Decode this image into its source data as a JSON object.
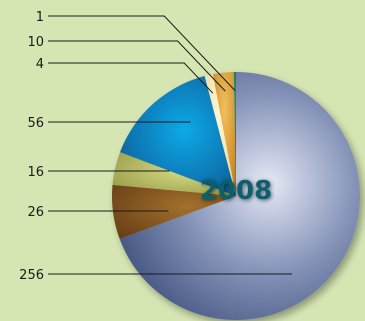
{
  "chart_data": {
    "type": "pie",
    "title": "2008",
    "slices": [
      {
        "value": 256,
        "label": "256",
        "color": "#6f7fa3"
      },
      {
        "value": 26,
        "label": "26",
        "color": "#7a4a1c"
      },
      {
        "value": 16,
        "label": "16",
        "color": "#a7ad58"
      },
      {
        "value": 56,
        "label": "56",
        "color": "#0d6fb4"
      },
      {
        "value": 4,
        "label": "4",
        "color": "#f2e6a7"
      },
      {
        "value": 10,
        "label": "10",
        "color": "#d99a2b"
      },
      {
        "value": 1,
        "label": "1",
        "color": "#2a7d4f"
      }
    ]
  },
  "colors": {
    "background": "#d6e6b3",
    "leader_line": "#1a1a1a"
  }
}
